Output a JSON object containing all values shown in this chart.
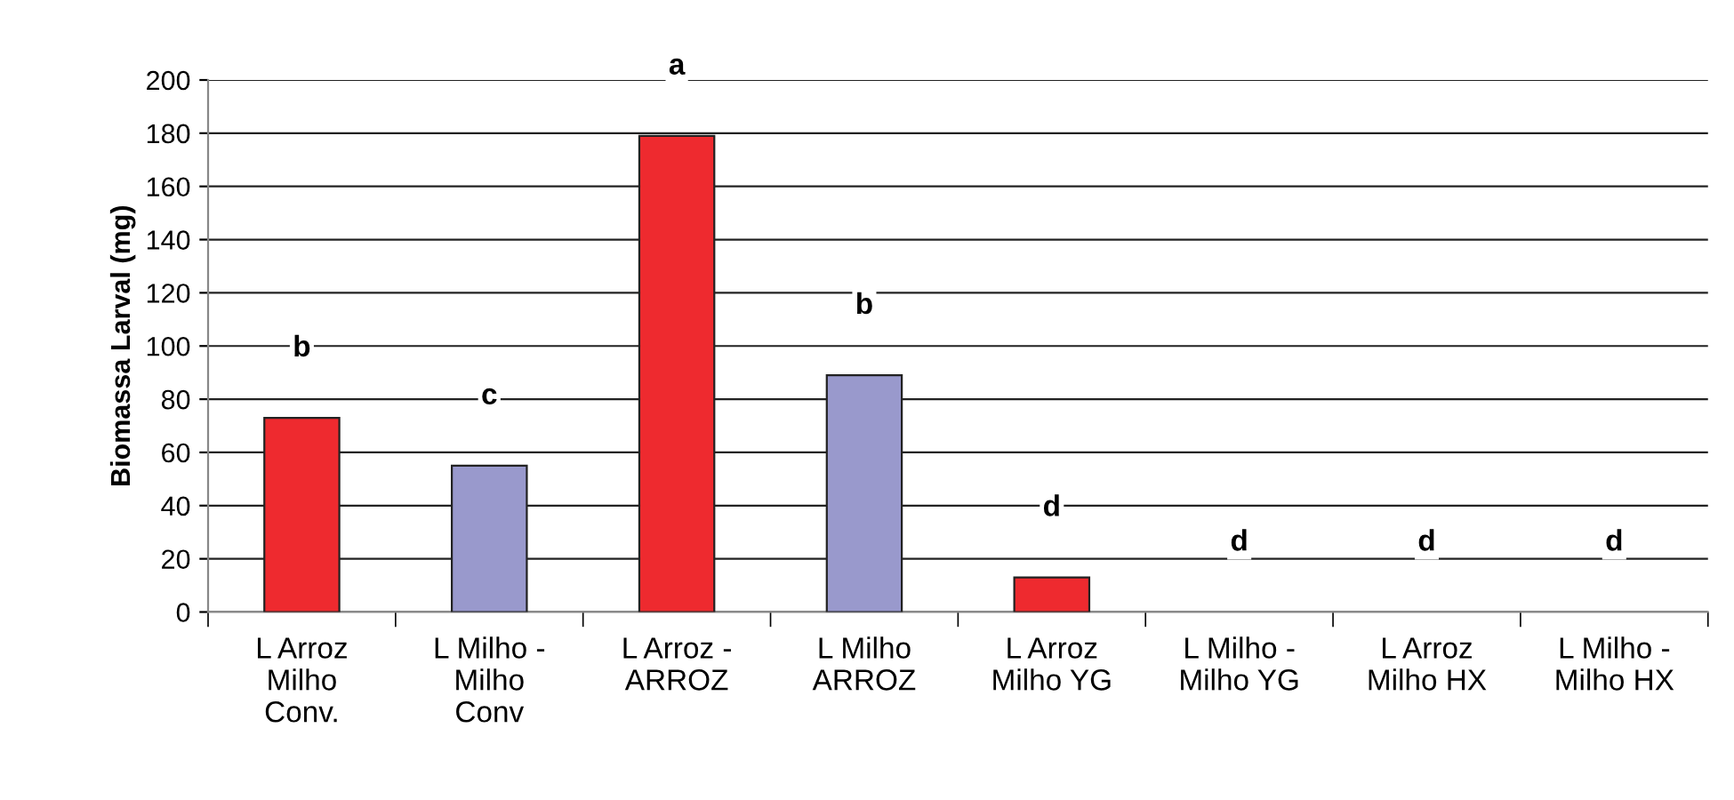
{
  "chart_data": {
    "type": "bar",
    "ylabel": "Biomassa Larval (mg)",
    "categories": [
      "L Arroz\nMilho\nConv.",
      "L Milho -\nMilho\nConv",
      "L Arroz -\nARROZ",
      "L Milho\nARROZ",
      "L Arroz\nMilho YG",
      "L Milho -\nMilho YG",
      "L Arroz\nMilho HX",
      "L Milho -\nMilho HX"
    ],
    "values": [
      73,
      55,
      179,
      89,
      13,
      0,
      0,
      0
    ],
    "colors": [
      "#ee2a2f",
      "#9999cc",
      "#ee2a2f",
      "#9999cc",
      "#ee2a2f",
      "#9999cc",
      "#ee2a2f",
      "#9999cc"
    ],
    "ylim": [
      0,
      200
    ],
    "yticks": [
      0,
      20,
      40,
      60,
      80,
      100,
      120,
      140,
      160,
      180,
      200
    ],
    "grid": "y",
    "annotations": [
      "b",
      "c",
      "a",
      "b",
      "d",
      "d",
      "d",
      "d"
    ]
  }
}
